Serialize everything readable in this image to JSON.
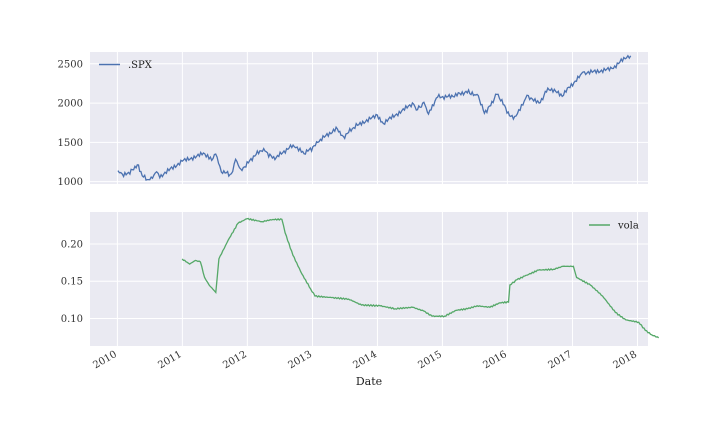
{
  "chart_data": [
    {
      "type": "line",
      "panel": "top",
      "xlabel": "",
      "ylabel": "",
      "grid": true,
      "legend_position": "top-left",
      "xlim": [
        "2009-07-31",
        "2018-03-01"
      ],
      "ylim": [
        970,
        2650
      ],
      "yticks": [
        1000,
        1500,
        2000,
        2500
      ],
      "series": [
        {
          "name": ".SPX",
          "color": "#4c72b0",
          "points": [
            [
              "2010-01-04",
              1140
            ],
            [
              "2010-02-05",
              1065
            ],
            [
              "2010-04-23",
              1215
            ],
            [
              "2010-05-20",
              1075
            ],
            [
              "2010-07-02",
              1025
            ],
            [
              "2010-08-09",
              1125
            ],
            [
              "2010-08-27",
              1050
            ],
            [
              "2010-12-31",
              1260
            ],
            [
              "2011-04-29",
              1365
            ],
            [
              "2011-06-15",
              1270
            ],
            [
              "2011-07-07",
              1350
            ],
            [
              "2011-08-08",
              1120
            ],
            [
              "2011-10-03",
              1100
            ],
            [
              "2011-10-27",
              1285
            ],
            [
              "2011-11-25",
              1160
            ],
            [
              "2012-04-02",
              1420
            ],
            [
              "2012-06-04",
              1280
            ],
            [
              "2012-09-14",
              1465
            ],
            [
              "2012-11-15",
              1355
            ],
            [
              "2013-01-31",
              1500
            ],
            [
              "2013-05-21",
              1670
            ],
            [
              "2013-06-24",
              1575
            ],
            [
              "2013-09-18",
              1725
            ],
            [
              "2013-12-31",
              1848
            ],
            [
              "2014-02-03",
              1740
            ],
            [
              "2014-07-24",
              1985
            ],
            [
              "2014-08-07",
              1910
            ],
            [
              "2014-09-19",
              2010
            ],
            [
              "2014-10-15",
              1860
            ],
            [
              "2014-12-05",
              2075
            ],
            [
              "2015-05-21",
              2130
            ],
            [
              "2015-07-15",
              2110
            ],
            [
              "2015-08-25",
              1870
            ],
            [
              "2015-11-03",
              2110
            ],
            [
              "2016-01-20",
              1830
            ],
            [
              "2016-02-11",
              1830
            ],
            [
              "2016-04-20",
              2100
            ],
            [
              "2016-06-27",
              2000
            ],
            [
              "2016-08-15",
              2190
            ],
            [
              "2016-11-04",
              2085
            ],
            [
              "2017-03-01",
              2395
            ],
            [
              "2017-08-11",
              2440
            ],
            [
              "2017-10-31",
              2575
            ],
            [
              "2017-11-24",
              2602
            ]
          ]
        }
      ]
    },
    {
      "type": "line",
      "panel": "bottom",
      "xlabel": "Date",
      "ylabel": "",
      "grid": true,
      "legend_position": "top-right",
      "xlim": [
        "2009-07-31",
        "2018-03-01"
      ],
      "ylim": [
        0.063,
        0.243
      ],
      "yticks": [
        0.1,
        0.15,
        0.2
      ],
      "ytick_labels": [
        "0.10",
        "0.15",
        "0.20"
      ],
      "xtick_labels": [
        "2010",
        "2011",
        "2012",
        "2013",
        "2014",
        "2015",
        "2016",
        "2017",
        "2018"
      ],
      "series": [
        {
          "name": "vola",
          "color": "#55a868",
          "points": [
            [
              "2010-12-31",
              0.18
            ],
            [
              "2011-02-11",
              0.173
            ],
            [
              "2011-03-15",
              0.178
            ],
            [
              "2011-04-12",
              0.176
            ],
            [
              "2011-05-06",
              0.155
            ],
            [
              "2011-05-31",
              0.145
            ],
            [
              "2011-07-08",
              0.135
            ],
            [
              "2011-07-25",
              0.18
            ],
            [
              "2011-09-15",
              0.205
            ],
            [
              "2011-11-10",
              0.228
            ],
            [
              "2011-12-30",
              0.234
            ],
            [
              "2012-03-23",
              0.23
            ],
            [
              "2012-05-24",
              0.233
            ],
            [
              "2012-07-13",
              0.233
            ],
            [
              "2012-07-31",
              0.215
            ],
            [
              "2012-09-13",
              0.185
            ],
            [
              "2012-11-02",
              0.16
            ],
            [
              "2012-12-21",
              0.14
            ],
            [
              "2013-01-15",
              0.13
            ],
            [
              "2013-04-19",
              0.128
            ],
            [
              "2013-07-23",
              0.126
            ],
            [
              "2013-10-04",
              0.118
            ],
            [
              "2014-01-16",
              0.117
            ],
            [
              "2014-04-11",
              0.113
            ],
            [
              "2014-07-18",
              0.115
            ],
            [
              "2014-09-18",
              0.11
            ],
            [
              "2014-11-04",
              0.103
            ],
            [
              "2015-01-13",
              0.103
            ],
            [
              "2015-03-20",
              0.111
            ],
            [
              "2015-05-22",
              0.113
            ],
            [
              "2015-07-15",
              0.117
            ],
            [
              "2015-09-25",
              0.115
            ],
            [
              "2015-11-20",
              0.121
            ],
            [
              "2016-01-07",
              0.122
            ],
            [
              "2016-01-15",
              0.145
            ],
            [
              "2016-02-24",
              0.152
            ],
            [
              "2016-04-08",
              0.157
            ],
            [
              "2016-06-24",
              0.165
            ],
            [
              "2016-09-16",
              0.166
            ],
            [
              "2016-11-08",
              0.17
            ],
            [
              "2017-01-06",
              0.17
            ],
            [
              "2017-01-24",
              0.155
            ],
            [
              "2017-04-11",
              0.145
            ],
            [
              "2017-06-19",
              0.13
            ],
            [
              "2017-08-30",
              0.108
            ],
            [
              "2017-10-27",
              0.098
            ],
            [
              "2018-01-08",
              0.095
            ],
            [
              "2018-02-14",
              0.084
            ],
            [
              "2018-03-22",
              0.078
            ],
            [
              "2018-04-30",
              0.074
            ]
          ]
        }
      ]
    }
  ]
}
